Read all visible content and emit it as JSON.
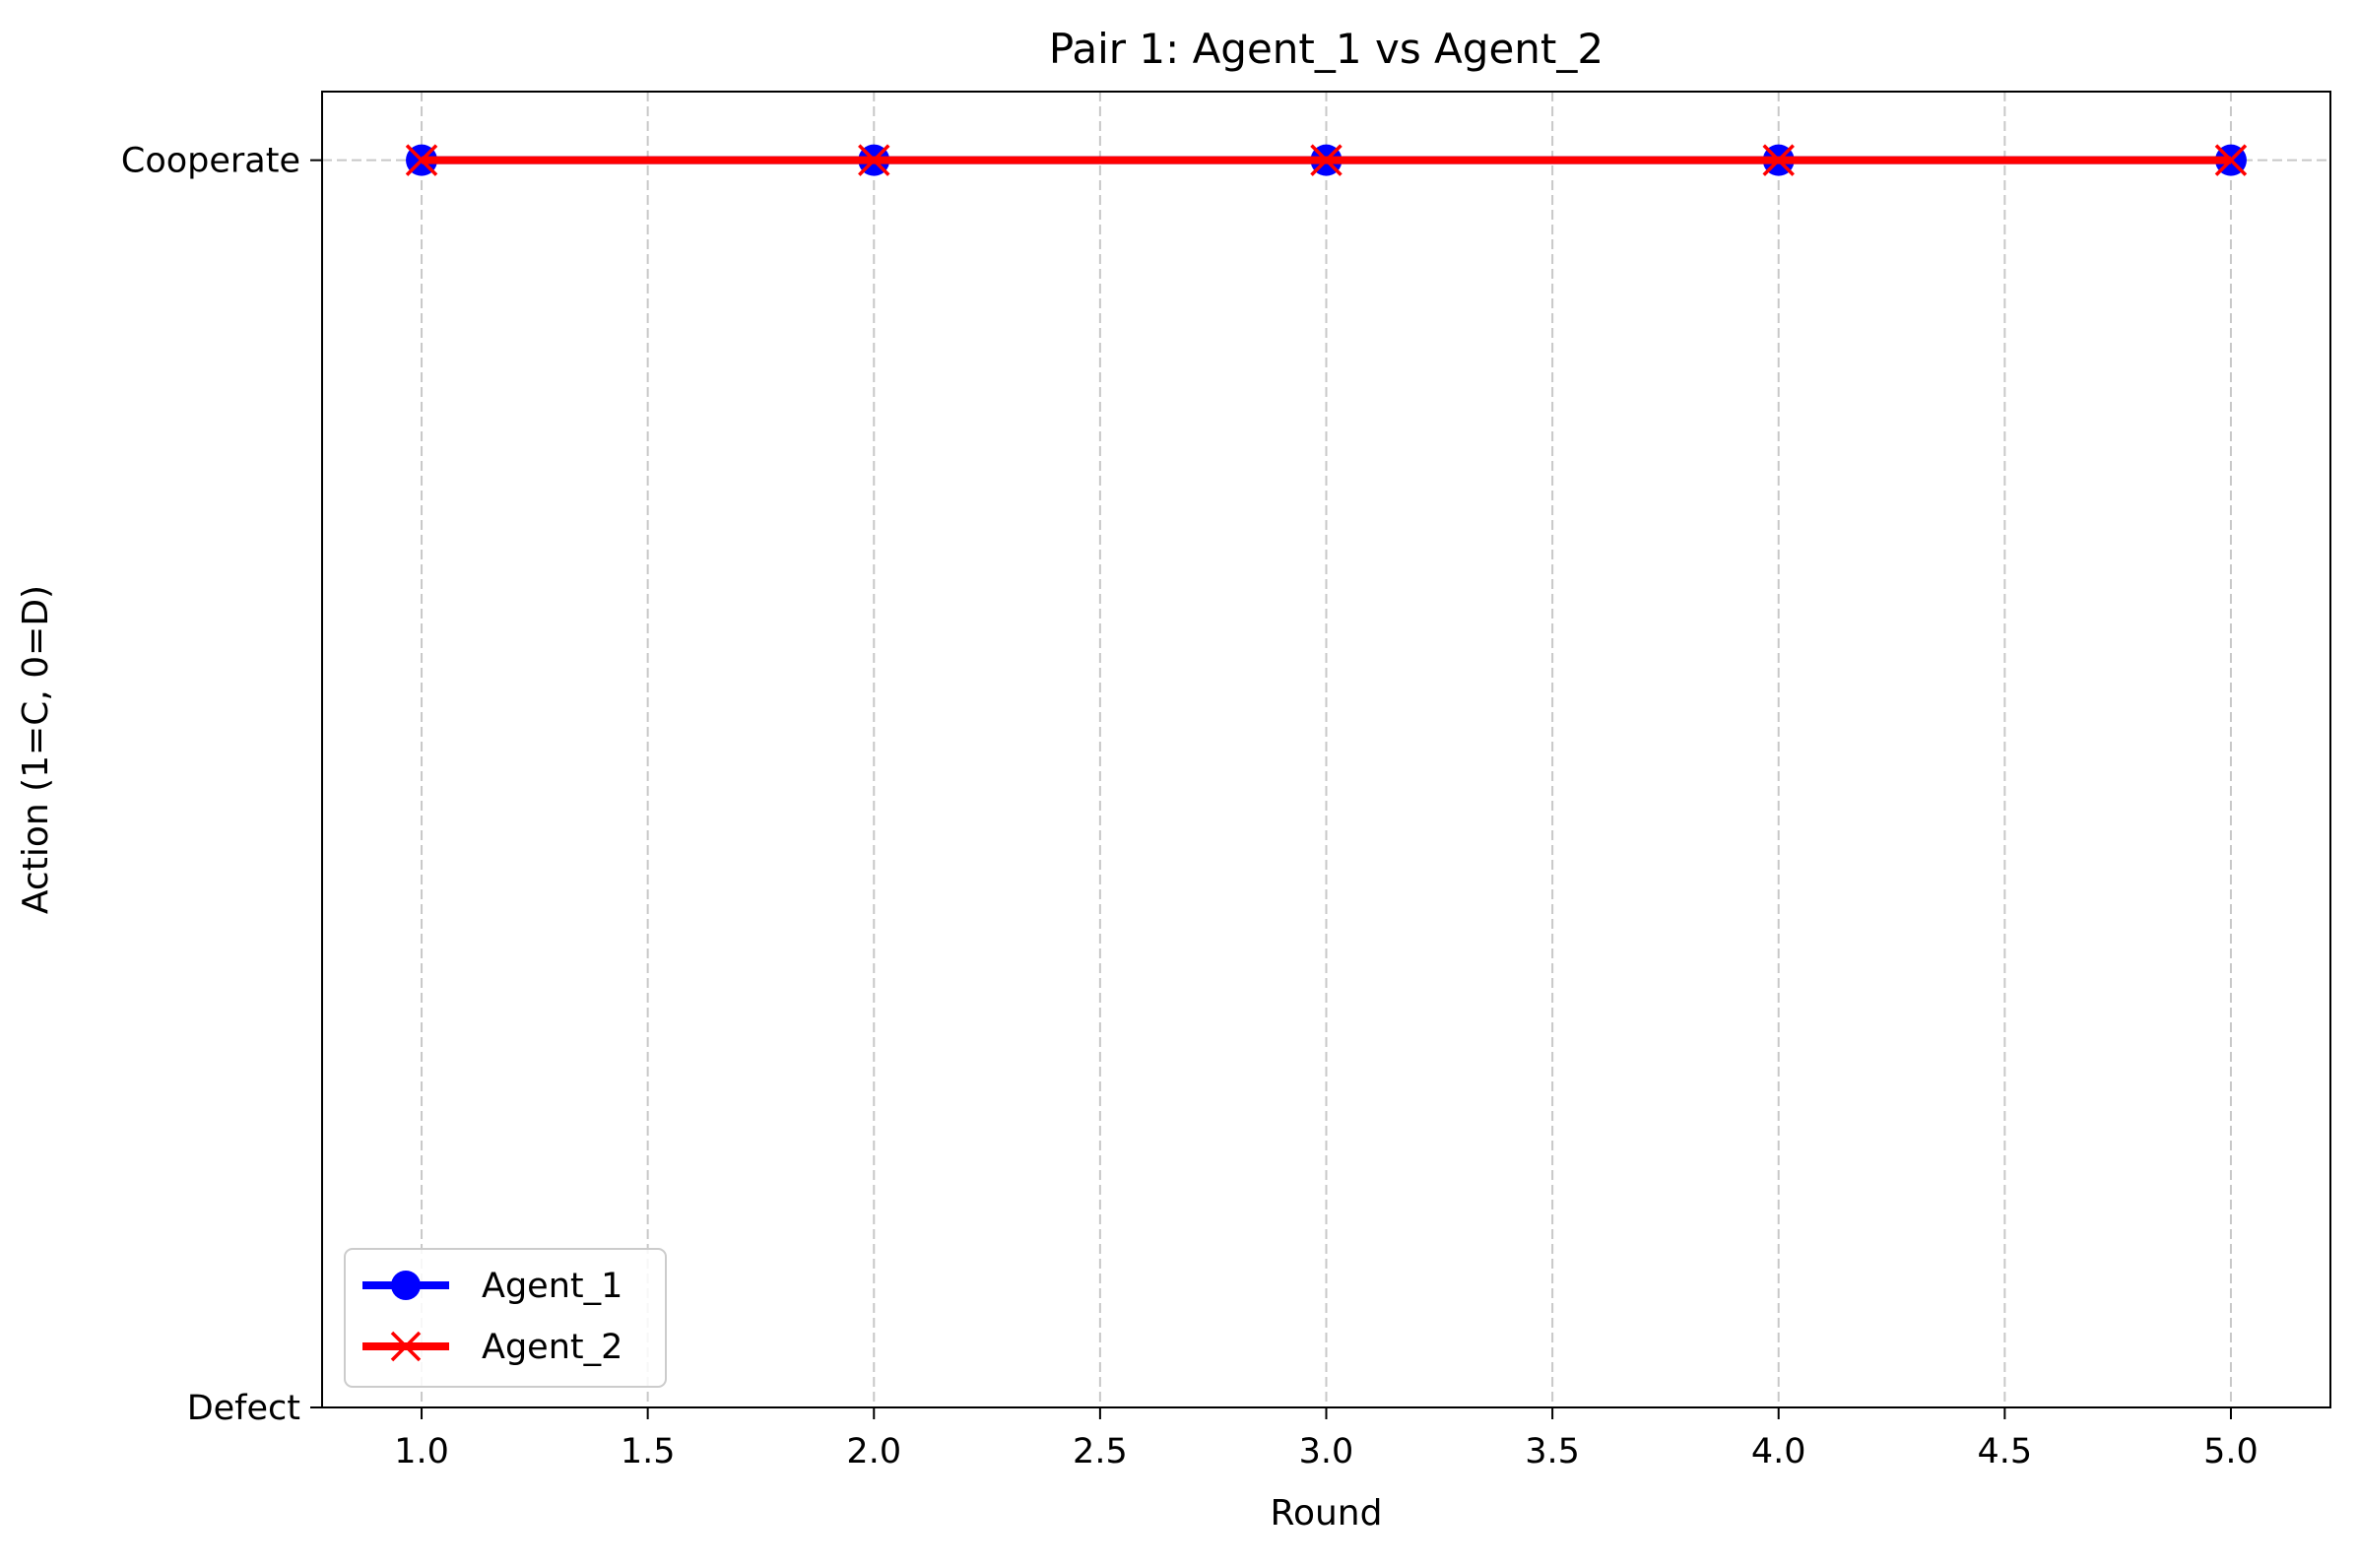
{
  "chart_data": {
    "type": "line",
    "title": "Pair 1: Agent_1 vs Agent_2",
    "xlabel": "Round",
    "ylabel": "Action (1=C, 0=D)",
    "x": [
      1,
      2,
      3,
      4,
      5
    ],
    "xlim": [
      0.78,
      5.22
    ],
    "ylim": [
      0,
      1.055
    ],
    "x_ticks": [
      1.0,
      1.5,
      2.0,
      2.5,
      3.0,
      3.5,
      4.0,
      4.5,
      5.0
    ],
    "x_tick_labels": [
      "1.0",
      "1.5",
      "2.0",
      "2.5",
      "3.0",
      "3.5",
      "4.0",
      "4.5",
      "5.0"
    ],
    "y_ticks": [
      0,
      1
    ],
    "y_tick_labels": [
      "Defect",
      "Cooperate"
    ],
    "grid": true,
    "legend_position": "lower-left",
    "series": [
      {
        "name": "Agent_1",
        "values": [
          1,
          1,
          1,
          1,
          1
        ],
        "color": "#0000ff",
        "marker": "circle"
      },
      {
        "name": "Agent_2",
        "values": [
          1,
          1,
          1,
          1,
          1
        ],
        "color": "#ff0000",
        "marker": "x"
      }
    ]
  }
}
